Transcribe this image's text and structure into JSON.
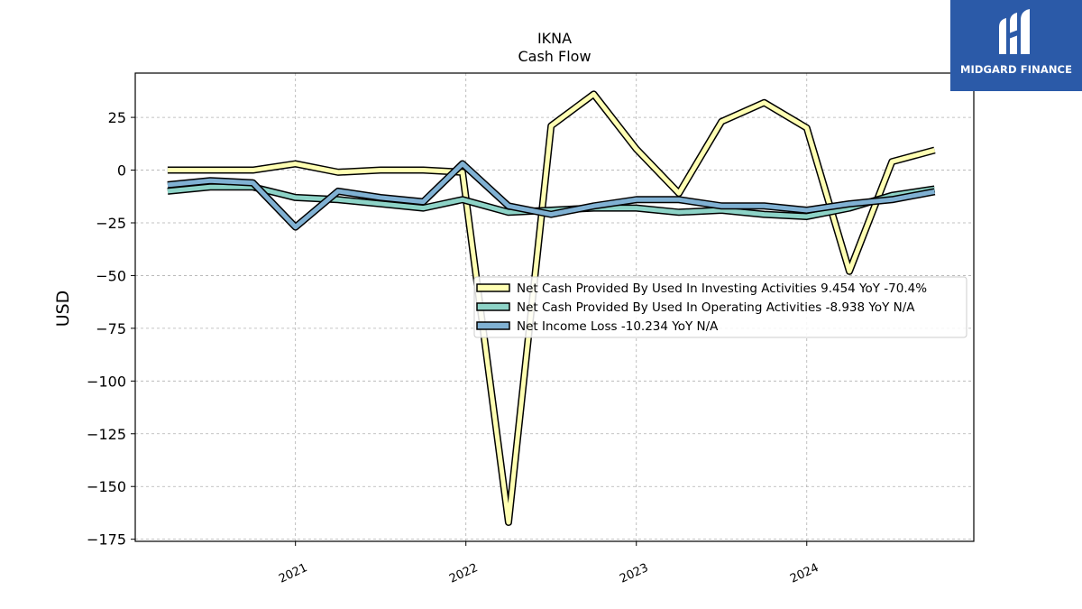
{
  "chart_data": {
    "type": "line",
    "title": "IKNA",
    "subtitle": "Cash Flow",
    "ylabel": "USD",
    "xlabel": "",
    "ylim": [
      -176,
      46
    ],
    "xlim": [
      2020.06,
      2024.98
    ],
    "yticks": [
      25,
      0,
      -25,
      -50,
      -75,
      -100,
      -125,
      -150,
      -175
    ],
    "ytick_labels": [
      "25",
      "0",
      "−25",
      "−50",
      "−75",
      "−100",
      "−125",
      "−150",
      "−175"
    ],
    "xticks": [
      2021,
      2022,
      2023,
      2024
    ],
    "xtick_labels": [
      "2021",
      "2022",
      "2023",
      "2024"
    ],
    "grid": true,
    "legend_position": "center-right",
    "x": [
      2020.25,
      2020.5,
      2020.75,
      2021.0,
      2021.25,
      2021.5,
      2021.75,
      2021.98,
      2022.25,
      2022.5,
      2022.75,
      2023.0,
      2023.25,
      2023.5,
      2023.75,
      2024.0,
      2024.25,
      2024.5,
      2024.75
    ],
    "series": [
      {
        "name": "Net Cash Provided By Used In Investing Activities",
        "legend": "Net Cash Provided By Used In Investing Activities  9.454 YoY -70.4%",
        "color": "#ffffb3",
        "values": [
          0,
          0,
          0,
          3,
          -1,
          0,
          0,
          -1,
          -167,
          21,
          36,
          10,
          -11,
          23,
          32,
          20,
          -48,
          4,
          9.454
        ]
      },
      {
        "name": "Net Cash Provided By Used In Operating Activities",
        "legend": "Net Cash Provided By Used In Operating Activities  -8.938 YoY N/A",
        "color": "#8dd3c7",
        "values": [
          -10,
          -8,
          -8,
          -13,
          -14,
          -16,
          -18,
          -14,
          -20,
          -19,
          -18,
          -18,
          -20,
          -19,
          -21,
          -22,
          -18,
          -12,
          -8.938
        ]
      },
      {
        "name": "Net Income Loss",
        "legend": "Net Income Loss  -10.234 YoY N/A",
        "color": "#80b1d3",
        "values": [
          -7,
          -5,
          -6,
          -27,
          -10,
          -13,
          -15,
          3,
          -17,
          -21,
          -17,
          -14,
          -14,
          -17,
          -17,
          -19,
          -16,
          -14,
          -10.234
        ]
      }
    ]
  },
  "logo": {
    "text": "MIDGARD FINANCE",
    "bg_color": "#2b5aa8"
  }
}
